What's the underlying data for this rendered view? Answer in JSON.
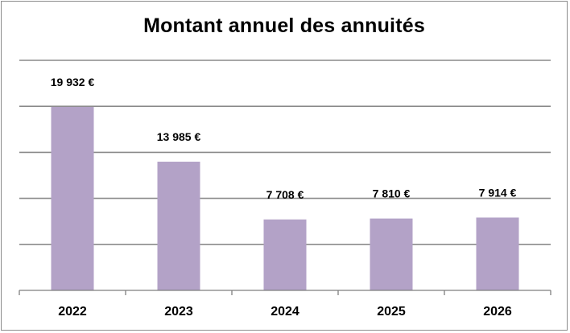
{
  "chart_data": {
    "type": "bar",
    "title": "Montant annuel des annuités",
    "xlabel": "",
    "ylabel": "",
    "categories": [
      "2022",
      "2023",
      "2024",
      "2025",
      "2026"
    ],
    "values": [
      19932,
      13985,
      7708,
      7810,
      7914
    ],
    "data_labels": [
      "19 932 €",
      "13 985 €",
      "7 708 €",
      "7 810 €",
      "7 914 €"
    ],
    "ylim": [
      0,
      25000
    ],
    "grid": true,
    "legend": "none",
    "bar_color": "#b3a2c7"
  }
}
